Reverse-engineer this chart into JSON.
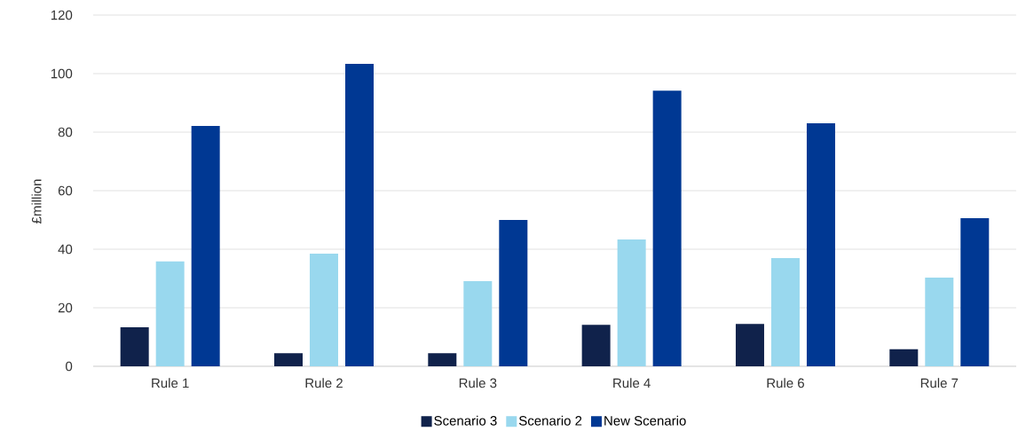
{
  "chart_data": {
    "type": "bar",
    "ylabel": "£million",
    "categories": [
      "Rule 1",
      "Rule 2",
      "Rule 3",
      "Rule 4",
      "Rule 6",
      "Rule 7"
    ],
    "series": [
      {
        "name": "Scenario 3",
        "color": "#10224b",
        "values": [
          13.3,
          4.5,
          4.5,
          14.2,
          14.5,
          5.8
        ]
      },
      {
        "name": "Scenario 2",
        "color": "#99d8ee",
        "values": [
          35.8,
          38.5,
          29.1,
          43.3,
          37,
          30.3
        ]
      },
      {
        "name": "New Scenario",
        "color": "#003893",
        "values": [
          82.1,
          103.3,
          50,
          94.2,
          83,
          50.6
        ]
      }
    ],
    "ylim": [
      0,
      120
    ],
    "yticks": [
      0,
      20,
      40,
      60,
      80,
      100,
      120
    ],
    "grid": "y",
    "legend": "bottom"
  }
}
